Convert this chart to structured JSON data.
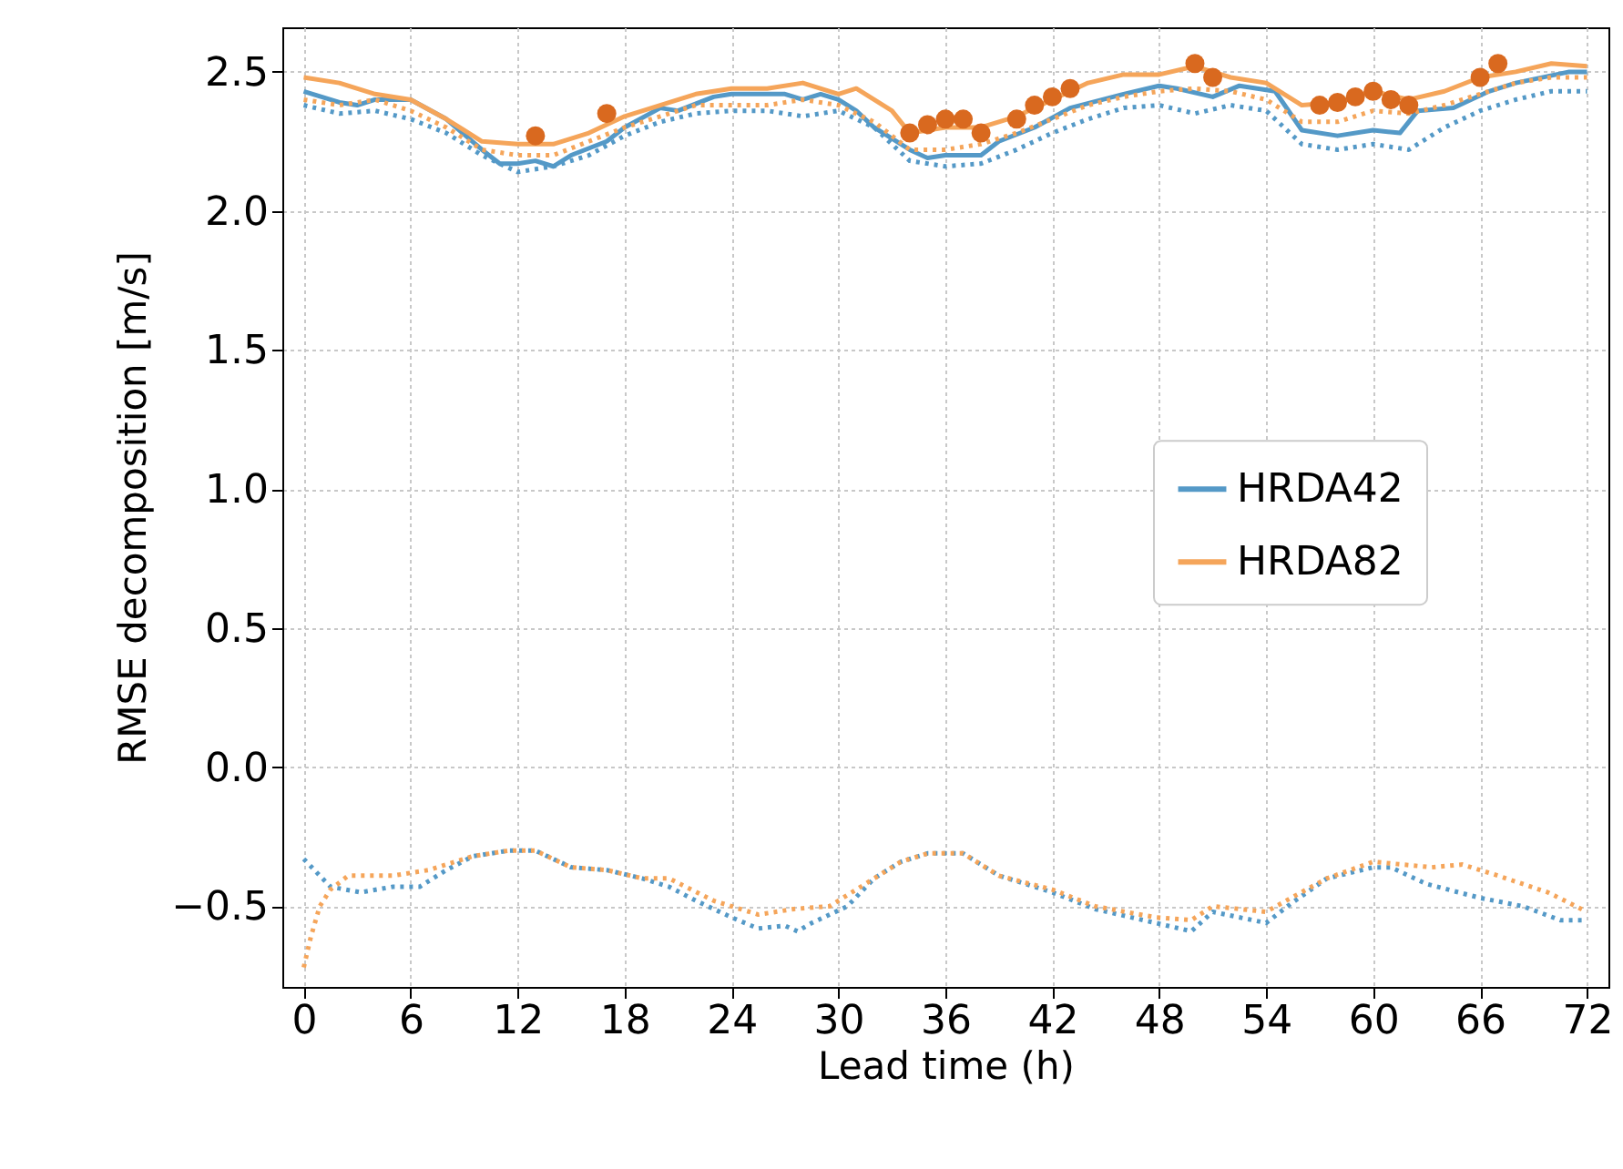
{
  "chart_data": {
    "type": "line",
    "xlabel": "Lead time (h)",
    "ylabel": "RMSE decomposition [m/s]",
    "xlim": [
      -1.2,
      73.2
    ],
    "ylim": [
      -0.79,
      2.66
    ],
    "xticks": [
      0,
      6,
      12,
      18,
      24,
      30,
      36,
      42,
      48,
      54,
      60,
      66,
      72
    ],
    "yticks": [
      {
        "value": -0.5,
        "label": "−0.5"
      },
      {
        "value": 0,
        "label": "0.0"
      },
      {
        "value": 0.5,
        "label": "0.5"
      },
      {
        "value": 1,
        "label": "1.0"
      },
      {
        "value": 1.5,
        "label": "1.5"
      },
      {
        "value": 2,
        "label": "2.0"
      },
      {
        "value": 2.5,
        "label": "2.5"
      }
    ],
    "grid": true,
    "legend": "right",
    "marker": "none",
    "series": [
      {
        "name": "HRDA42",
        "color": "#5499c7",
        "line_style": "solid",
        "x": [
          0,
          2,
          3,
          4,
          6,
          8,
          10,
          11,
          12,
          13,
          14,
          15,
          17,
          18,
          20,
          21,
          23,
          24,
          26,
          27,
          28,
          29,
          30,
          31,
          32,
          34,
          35,
          36,
          38,
          39,
          41,
          43,
          46,
          48,
          49,
          51,
          52.5,
          54.5,
          56,
          58,
          60,
          61.5,
          62.5,
          64.5,
          66.5,
          68,
          71,
          72
        ],
        "values": [
          2.43,
          2.39,
          2.38,
          2.4,
          2.4,
          2.33,
          2.22,
          2.17,
          2.17,
          2.18,
          2.16,
          2.2,
          2.25,
          2.3,
          2.37,
          2.36,
          2.41,
          2.42,
          2.42,
          2.42,
          2.4,
          2.42,
          2.4,
          2.36,
          2.3,
          2.22,
          2.19,
          2.2,
          2.2,
          2.25,
          2.3,
          2.37,
          2.42,
          2.45,
          2.44,
          2.41,
          2.45,
          2.43,
          2.29,
          2.27,
          2.29,
          2.28,
          2.36,
          2.37,
          2.43,
          2.46,
          2.5,
          2.5
        ]
      },
      {
        "name": "HRDA82",
        "color": "#f5a55a",
        "line_style": "solid",
        "x": [
          0,
          2,
          4,
          6,
          8,
          10,
          12,
          14,
          16,
          18,
          20,
          22,
          24,
          26,
          28,
          30,
          31,
          33,
          34,
          36,
          38,
          40,
          42,
          44,
          46,
          48,
          50,
          52,
          54,
          56,
          58,
          60,
          62,
          64,
          66,
          68,
          70,
          72
        ],
        "values": [
          2.48,
          2.46,
          2.42,
          2.4,
          2.33,
          2.25,
          2.24,
          2.24,
          2.28,
          2.34,
          2.38,
          2.42,
          2.44,
          2.44,
          2.46,
          2.42,
          2.44,
          2.36,
          2.28,
          2.3,
          2.3,
          2.34,
          2.4,
          2.46,
          2.49,
          2.49,
          2.52,
          2.48,
          2.46,
          2.38,
          2.39,
          2.43,
          2.4,
          2.43,
          2.48,
          2.5,
          2.53,
          2.52
        ]
      },
      {
        "color": "#5499c7",
        "line_style": "dotted",
        "x": [
          0,
          2,
          4,
          6,
          8,
          10,
          12,
          14,
          16,
          18,
          20,
          22,
          24,
          26,
          28,
          30,
          32,
          34,
          36,
          38,
          40,
          42,
          44,
          46,
          48,
          50,
          52,
          54,
          56,
          58,
          60,
          62,
          64,
          66,
          68,
          70,
          72
        ],
        "values": [
          2.38,
          2.35,
          2.36,
          2.33,
          2.28,
          2.2,
          2.14,
          2.16,
          2.2,
          2.27,
          2.32,
          2.35,
          2.36,
          2.36,
          2.34,
          2.36,
          2.3,
          2.18,
          2.16,
          2.17,
          2.22,
          2.28,
          2.33,
          2.37,
          2.38,
          2.35,
          2.38,
          2.36,
          2.24,
          2.22,
          2.24,
          2.22,
          2.3,
          2.36,
          2.4,
          2.43,
          2.43
        ]
      },
      {
        "color": "#f5a55a",
        "line_style": "dotted",
        "x": [
          0,
          2,
          4,
          6,
          8,
          10,
          12,
          14,
          16,
          18,
          20,
          22,
          24,
          26,
          28,
          30,
          32,
          34,
          36,
          38,
          40,
          42,
          44,
          46,
          48,
          50,
          52,
          54,
          56,
          58,
          60,
          62,
          64,
          66,
          68,
          70,
          72
        ],
        "values": [
          2.4,
          2.38,
          2.4,
          2.36,
          2.3,
          2.22,
          2.2,
          2.2,
          2.25,
          2.3,
          2.34,
          2.38,
          2.38,
          2.38,
          2.4,
          2.38,
          2.32,
          2.22,
          2.22,
          2.24,
          2.28,
          2.33,
          2.38,
          2.41,
          2.43,
          2.44,
          2.43,
          2.4,
          2.32,
          2.32,
          2.36,
          2.35,
          2.38,
          2.42,
          2.46,
          2.48,
          2.48
        ]
      },
      {
        "color": "#5499c7",
        "line_style": "dotted",
        "x": [
          0,
          1.5,
          3.2,
          5,
          6.5,
          8,
          9.5,
          11.5,
          13,
          15,
          17,
          19,
          20.5,
          22,
          24,
          25.5,
          27,
          27.7,
          28.5,
          30.5,
          32,
          33.5,
          35,
          37,
          39,
          42,
          44.4,
          47.8,
          49.8,
          51,
          54,
          55.4,
          57.4,
          60,
          61,
          63,
          66,
          68.4,
          70.5,
          72
        ],
        "values": [
          -0.33,
          -0.43,
          -0.45,
          -0.43,
          -0.43,
          -0.37,
          -0.32,
          -0.3,
          -0.3,
          -0.36,
          -0.37,
          -0.4,
          -0.43,
          -0.48,
          -0.54,
          -0.58,
          -0.57,
          -0.59,
          -0.56,
          -0.5,
          -0.4,
          -0.34,
          -0.31,
          -0.31,
          -0.39,
          -0.45,
          -0.51,
          -0.56,
          -0.59,
          -0.52,
          -0.56,
          -0.49,
          -0.4,
          -0.36,
          -0.36,
          -0.42,
          -0.47,
          -0.5,
          -0.55,
          -0.55
        ]
      },
      {
        "color": "#f5a55a",
        "line_style": "dotted",
        "x": [
          0,
          0.4,
          0.9,
          1.5,
          2.5,
          5,
          7,
          9.5,
          11.5,
          13,
          15,
          17,
          19,
          20.5,
          23,
          25.5,
          27.5,
          29.5,
          32,
          33.5,
          35,
          37,
          39,
          42,
          44.4,
          47.8,
          49.8,
          51,
          52.5,
          54,
          55.4,
          57.4,
          60,
          63.3,
          65,
          67,
          69.8,
          72
        ],
        "values": [
          -0.72,
          -0.61,
          -0.5,
          -0.44,
          -0.39,
          -0.39,
          -0.37,
          -0.32,
          -0.3,
          -0.3,
          -0.36,
          -0.37,
          -0.4,
          -0.4,
          -0.48,
          -0.53,
          -0.51,
          -0.5,
          -0.4,
          -0.34,
          -0.31,
          -0.31,
          -0.39,
          -0.44,
          -0.5,
          -0.54,
          -0.55,
          -0.5,
          -0.51,
          -0.52,
          -0.47,
          -0.4,
          -0.34,
          -0.36,
          -0.35,
          -0.39,
          -0.45,
          -0.52
        ]
      },
      {
        "type": "scatter",
        "color": "#d9691f",
        "marker": "circle",
        "x": [
          13,
          17,
          34,
          35,
          36,
          37,
          38,
          40,
          41,
          42,
          43,
          50,
          51,
          57,
          58,
          59,
          60,
          61,
          62,
          66,
          67
        ],
        "values": [
          2.27,
          2.35,
          2.28,
          2.31,
          2.33,
          2.33,
          2.28,
          2.33,
          2.38,
          2.41,
          2.44,
          2.53,
          2.48,
          2.38,
          2.39,
          2.41,
          2.43,
          2.4,
          2.38,
          2.48,
          2.53
        ]
      }
    ]
  }
}
